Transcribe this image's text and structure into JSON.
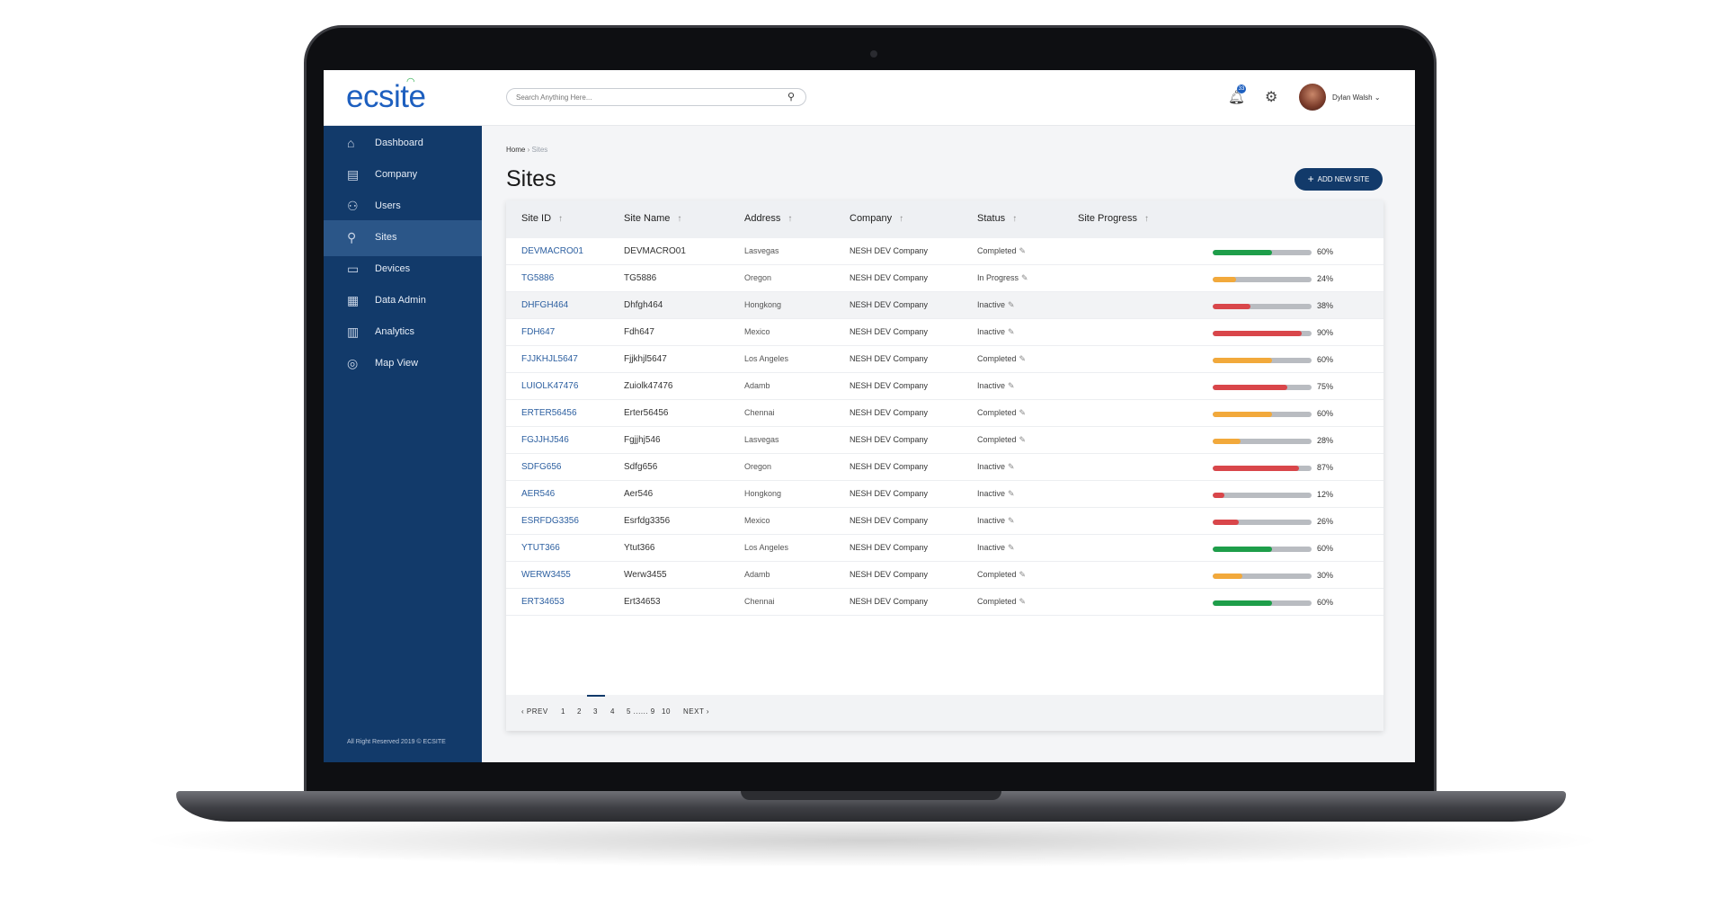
{
  "app": {
    "logo": "ecsite",
    "search_placeholder": "Search Anything Here...",
    "notification_count": "33",
    "user_name": "Dylan Walsh ⌄"
  },
  "sidebar": {
    "items": [
      {
        "label": "Dashboard",
        "icon": "home-icon"
      },
      {
        "label": "Company",
        "icon": "building-icon"
      },
      {
        "label": "Users",
        "icon": "users-icon"
      },
      {
        "label": "Sites",
        "icon": "location-icon",
        "active": true
      },
      {
        "label": "Devices",
        "icon": "devices-icon"
      },
      {
        "label": "Data Admin",
        "icon": "data-admin-icon"
      },
      {
        "label": "Analytics",
        "icon": "analytics-icon"
      },
      {
        "label": "Map View",
        "icon": "map-icon"
      }
    ],
    "footer": "All Right Reserved 2019 © ECSITE"
  },
  "breadcrumb": {
    "home": "Home",
    "separator": "›",
    "current": "Sites"
  },
  "page": {
    "title": "Sites",
    "add_button": "ADD NEW SITE"
  },
  "table": {
    "headers": [
      "Site ID",
      "Site Name",
      "Address",
      "Company",
      "Status",
      "Site Progress"
    ],
    "rows": [
      {
        "id": "DEVMACRO01",
        "name": "DEVMACRO01",
        "address": "Lasvegas",
        "company": "NESH DEV Company",
        "status": "Completed",
        "progress": 60,
        "pct": "60%",
        "color": "#1e9e4a"
      },
      {
        "id": "TG5886",
        "name": "TG5886",
        "address": "Oregon",
        "company": "NESH DEV Company",
        "status": "In Progress",
        "progress": 24,
        "pct": "24%",
        "color": "#f2a93b"
      },
      {
        "id": "DHFGH464",
        "name": "Dhfgh464",
        "address": "Hongkong",
        "company": "NESH DEV Company",
        "status": "Inactive",
        "progress": 38,
        "pct": "38%",
        "color": "#d9464a"
      },
      {
        "id": "FDH647",
        "name": "Fdh647",
        "address": "Mexico",
        "company": "NESH DEV Company",
        "status": "Inactive",
        "progress": 90,
        "pct": "90%",
        "color": "#d9464a"
      },
      {
        "id": "FJJKHJL5647",
        "name": "Fjjkhjl5647",
        "address": "Los Angeles",
        "company": "NESH DEV Company",
        "status": "Completed",
        "progress": 60,
        "pct": "60%",
        "color": "#f2a93b"
      },
      {
        "id": "LUIOLK47476",
        "name": "Zuiolk47476",
        "address": "Adamb",
        "company": "NESH DEV Company",
        "status": "Inactive",
        "progress": 75,
        "pct": "75%",
        "color": "#d9464a"
      },
      {
        "id": "ERTER56456",
        "name": "Erter56456",
        "address": "Chennai",
        "company": "NESH DEV Company",
        "status": "Completed",
        "progress": 60,
        "pct": "60%",
        "color": "#f2a93b"
      },
      {
        "id": "FGJJHJ546",
        "name": "Fgjjhj546",
        "address": "Lasvegas",
        "company": "NESH DEV Company",
        "status": "Completed",
        "progress": 28,
        "pct": "28%",
        "color": "#f2a93b"
      },
      {
        "id": "SDFG656",
        "name": "Sdfg656",
        "address": "Oregon",
        "company": "NESH DEV Company",
        "status": "Inactive",
        "progress": 87,
        "pct": "87%",
        "color": "#d9464a"
      },
      {
        "id": "AER546",
        "name": "Aer546",
        "address": "Hongkong",
        "company": "NESH DEV Company",
        "status": "Inactive",
        "progress": 12,
        "pct": "12%",
        "color": "#d9464a"
      },
      {
        "id": "ESRFDG3356",
        "name": "Esrfdg3356",
        "address": "Mexico",
        "company": "NESH DEV Company",
        "status": "Inactive",
        "progress": 26,
        "pct": "26%",
        "color": "#d9464a"
      },
      {
        "id": "YTUT366",
        "name": "Ytut366",
        "address": "Los Angeles",
        "company": "NESH DEV Company",
        "status": "Inactive",
        "progress": 60,
        "pct": "60%",
        "color": "#1e9e4a"
      },
      {
        "id": "WERW3455",
        "name": "Werw3455",
        "address": "Adamb",
        "company": "NESH DEV Company",
        "status": "Completed",
        "progress": 30,
        "pct": "30%",
        "color": "#f2a93b"
      },
      {
        "id": "ERT34653",
        "name": "Ert34653",
        "address": "Chennai",
        "company": "NESH DEV Company",
        "status": "Completed",
        "progress": 60,
        "pct": "60%",
        "color": "#1e9e4a"
      }
    ]
  },
  "pagination": {
    "prev": "‹ PREV",
    "pages": [
      "1",
      "2",
      "3",
      "4",
      "5 ...... 9",
      "10"
    ],
    "active": "3",
    "next": "NEXT ›"
  }
}
